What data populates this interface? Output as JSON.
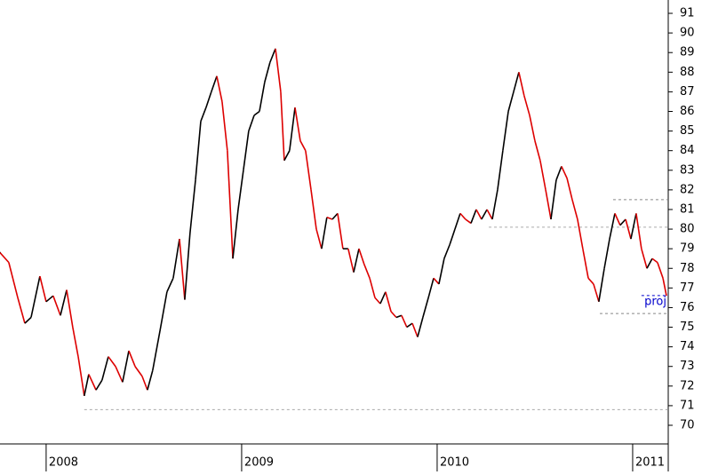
{
  "chart_data": {
    "type": "line",
    "up_color": "#000000",
    "down_color": "#dd0000",
    "xlim": [
      2007.764,
      2011.182
    ],
    "xticks": [
      2008,
      2009,
      2010,
      2011
    ],
    "ylim": [
      69.05,
      91.68
    ],
    "yticks": [
      70,
      71,
      72,
      73,
      74,
      75,
      76,
      77,
      78,
      79,
      80,
      81,
      82,
      83,
      84,
      85,
      86,
      87,
      88,
      89,
      90,
      91
    ],
    "x": [
      2007.764,
      2007.809,
      2007.855,
      2007.891,
      2007.923,
      2007.968,
      2008.0,
      2008.036,
      2008.073,
      2008.105,
      2008.136,
      2008.164,
      2008.195,
      2008.218,
      2008.255,
      2008.286,
      2008.318,
      2008.355,
      2008.391,
      2008.423,
      2008.455,
      2008.491,
      2008.518,
      2008.545,
      2008.582,
      2008.618,
      2008.65,
      2008.682,
      2008.709,
      2008.736,
      2008.764,
      2008.791,
      2008.818,
      2008.845,
      2008.873,
      2008.9,
      2008.927,
      2008.955,
      2008.982,
      2009.009,
      2009.036,
      2009.064,
      2009.091,
      2009.118,
      2009.145,
      2009.173,
      2009.2,
      2009.218,
      2009.245,
      2009.273,
      2009.3,
      2009.327,
      2009.355,
      2009.382,
      2009.409,
      2009.436,
      2009.464,
      2009.491,
      2009.518,
      2009.545,
      2009.573,
      2009.6,
      2009.627,
      2009.655,
      2009.682,
      2009.709,
      2009.736,
      2009.764,
      2009.791,
      2009.818,
      2009.845,
      2009.873,
      2009.9,
      2009.927,
      2009.955,
      2009.982,
      2010.009,
      2010.036,
      2010.064,
      2010.091,
      2010.118,
      2010.145,
      2010.173,
      2010.2,
      2010.227,
      2010.255,
      2010.282,
      2010.309,
      2010.336,
      2010.364,
      2010.391,
      2010.418,
      2010.445,
      2010.473,
      2010.5,
      2010.527,
      2010.555,
      2010.582,
      2010.609,
      2010.636,
      2010.664,
      2010.691,
      2010.718,
      2010.745,
      2010.773,
      2010.8,
      2010.827,
      2010.855,
      2010.882,
      2010.909,
      2010.936,
      2010.964,
      2010.991,
      2011.018,
      2011.045,
      2011.073,
      2011.1,
      2011.127,
      2011.155,
      2011.173
    ],
    "values": [
      78.8,
      78.3,
      76.5,
      75.2,
      75.5,
      77.6,
      76.3,
      76.6,
      75.6,
      76.9,
      75.0,
      73.5,
      71.5,
      72.6,
      71.8,
      72.3,
      73.5,
      73.0,
      72.2,
      73.8,
      73.0,
      72.5,
      71.8,
      72.8,
      74.8,
      76.8,
      77.5,
      79.5,
      76.4,
      79.8,
      82.5,
      85.5,
      86.2,
      87.0,
      87.8,
      86.5,
      84.0,
      78.5,
      81.0,
      83.0,
      85.0,
      85.8,
      86.0,
      87.5,
      88.5,
      89.2,
      87.0,
      83.5,
      84.0,
      86.2,
      84.5,
      84.0,
      82.0,
      80.0,
      79.0,
      80.6,
      80.5,
      80.8,
      79.0,
      79.0,
      77.8,
      79.0,
      78.2,
      77.5,
      76.5,
      76.2,
      76.8,
      75.8,
      75.5,
      75.6,
      75.0,
      75.2,
      74.5,
      75.5,
      76.5,
      77.5,
      77.2,
      78.5,
      79.2,
      80.0,
      80.8,
      80.5,
      80.3,
      81.0,
      80.5,
      81.0,
      80.5,
      82.0,
      84.0,
      86.0,
      87.0,
      88.0,
      86.8,
      85.8,
      84.5,
      83.5,
      82.0,
      80.5,
      82.5,
      83.2,
      82.6,
      81.5,
      80.5,
      79.0,
      77.5,
      77.2,
      76.3,
      78.0,
      79.5,
      80.8,
      80.2,
      80.5,
      79.5,
      80.8,
      79.0,
      78.0,
      78.5,
      78.3,
      77.5,
      76.6
    ],
    "reference_lines": [
      {
        "y": 70.8,
        "x_from": 2008.195,
        "color": "#aaaaaa"
      },
      {
        "y": 80.1,
        "x_from": 2010.264,
        "color": "#aaaaaa"
      },
      {
        "y": 81.5,
        "x_from": 2010.9,
        "color": "#888888"
      },
      {
        "y": 75.7,
        "x_from": 2010.832,
        "color": "#888888"
      }
    ],
    "projection": {
      "label": "proj",
      "y": 76.3,
      "x_from": 2011.045,
      "color": "#0000cc"
    }
  }
}
